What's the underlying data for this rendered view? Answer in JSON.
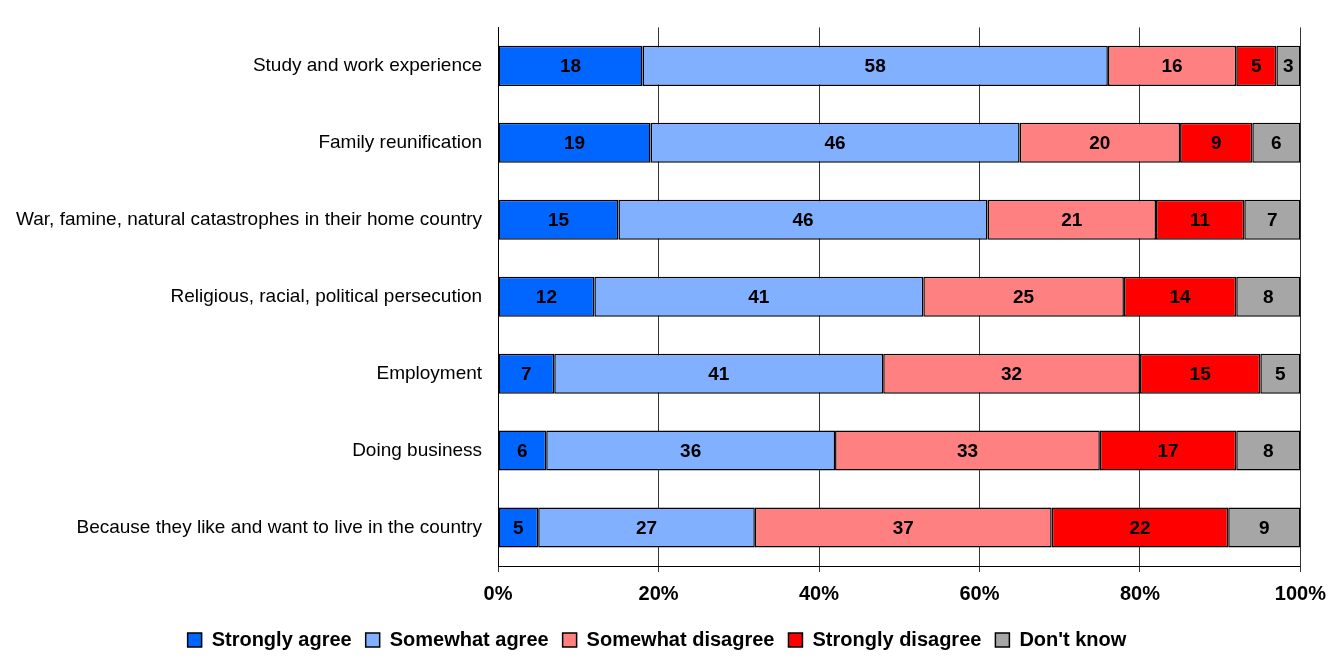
{
  "chart_data": {
    "type": "bar",
    "orientation": "horizontal",
    "stacked": true,
    "data_labels": true,
    "grid": "x",
    "legend": "bottom",
    "categories": [
      "Study and work experience",
      "Family reunification",
      "War, famine, natural catastrophes in their home country",
      "Religious, racial, political persecution",
      "Employment",
      "Doing business",
      "Because they like and want to live in the country"
    ],
    "xlim": [
      0,
      100
    ],
    "xticks": [
      {
        "value": 0,
        "label": "0%"
      },
      {
        "value": 20,
        "label": "20%"
      },
      {
        "value": 40,
        "label": "40%"
      },
      {
        "value": 60,
        "label": "60%"
      },
      {
        "value": 80,
        "label": "80%"
      },
      {
        "value": 100,
        "label": "100%"
      }
    ],
    "series": [
      {
        "name": "Strongly agree",
        "color": "#0066ff",
        "values": [
          18,
          19,
          15,
          12,
          7,
          6,
          5
        ]
      },
      {
        "name": "Somewhat agree",
        "color": "#80b0ff",
        "values": [
          58,
          46,
          46,
          41,
          41,
          36,
          27
        ]
      },
      {
        "name": "Somewhat disagree",
        "color": "#ff8080",
        "values": [
          16,
          20,
          21,
          25,
          32,
          33,
          37
        ]
      },
      {
        "name": "Strongly disagree",
        "color": "#ff0000",
        "values": [
          5,
          9,
          11,
          14,
          15,
          17,
          22
        ]
      },
      {
        "name": "Don't know",
        "color": "#a6a6a6",
        "values": [
          3,
          6,
          7,
          8,
          5,
          8,
          9
        ]
      }
    ]
  }
}
